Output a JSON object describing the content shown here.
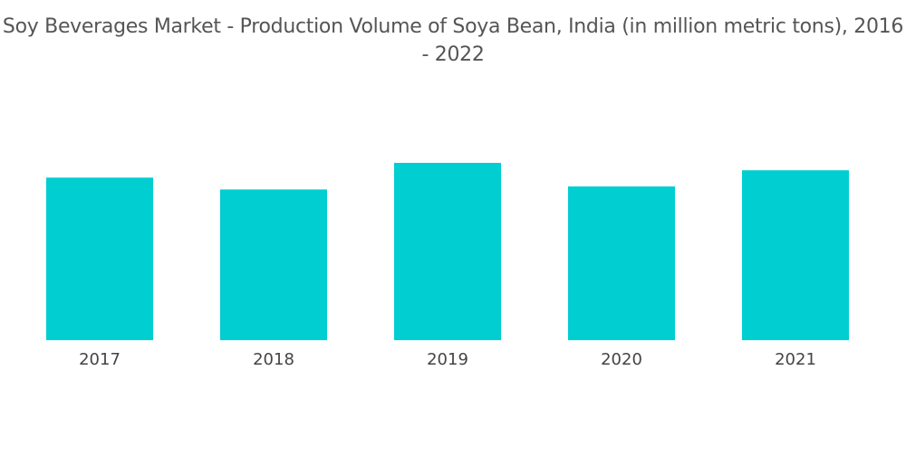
{
  "chart_data": {
    "type": "bar",
    "title": "Soy Beverages Market - Production Volume of Soya Bean, India (in million metric tons), 2016 - 2022",
    "xlabel": "",
    "ylabel": "",
    "categories": [
      "2017",
      "2018",
      "2019",
      "2020",
      "2021"
    ],
    "values": [
      11.0,
      10.2,
      12.0,
      10.4,
      11.5
    ],
    "ylim": [
      0,
      12.0
    ],
    "grid": false,
    "legend": "none",
    "bar_color": "#00ced1"
  }
}
